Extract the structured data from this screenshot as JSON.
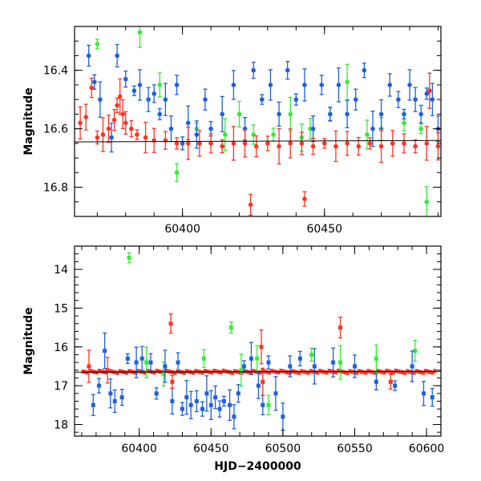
{
  "chart_data": [
    {
      "type": "scatter",
      "title": "",
      "xlabel": "",
      "ylabel": "Magnitude",
      "xlim": [
        60362,
        60491
      ],
      "ylim": [
        16.9,
        16.25
      ],
      "y_inverted": true,
      "grid": false,
      "x_ticks": [
        60400,
        60450
      ],
      "y_ticks": [
        16.4,
        16.6,
        16.8
      ],
      "colors": {
        "green": "#33ee33",
        "blue": "#1f5fe0",
        "red": "#ff3322",
        "line": "#000000"
      },
      "series": [
        {
          "color": "green",
          "points": [
            {
              "x": 60370,
              "y": 16.31
            },
            {
              "x": 60385,
              "y": 16.27
            },
            {
              "x": 60392,
              "y": 16.45
            },
            {
              "x": 60398,
              "y": 16.75
            },
            {
              "x": 60405,
              "y": 16.6
            },
            {
              "x": 60415,
              "y": 16.62
            },
            {
              "x": 60420,
              "y": 16.55
            },
            {
              "x": 60425,
              "y": 16.62
            },
            {
              "x": 60432,
              "y": 16.62
            },
            {
              "x": 60438,
              "y": 16.55
            },
            {
              "x": 60442,
              "y": 16.63
            },
            {
              "x": 60445,
              "y": 16.6
            },
            {
              "x": 60452,
              "y": 16.55
            },
            {
              "x": 60458,
              "y": 16.44
            },
            {
              "x": 60465,
              "y": 16.62
            },
            {
              "x": 60470,
              "y": 16.6
            },
            {
              "x": 60478,
              "y": 16.58
            },
            {
              "x": 60484,
              "y": 16.6
            },
            {
              "x": 60486,
              "y": 16.85
            }
          ]
        },
        {
          "color": "blue",
          "points": [
            {
              "x": 60367,
              "y": 16.35
            },
            {
              "x": 60369,
              "y": 16.44
            },
            {
              "x": 60371,
              "y": 16.5
            },
            {
              "x": 60375,
              "y": 16.63
            },
            {
              "x": 60377,
              "y": 16.35
            },
            {
              "x": 60380,
              "y": 16.43
            },
            {
              "x": 60383,
              "y": 16.47
            },
            {
              "x": 60385,
              "y": 16.45
            },
            {
              "x": 60388,
              "y": 16.5
            },
            {
              "x": 60390,
              "y": 16.48
            },
            {
              "x": 60392,
              "y": 16.55
            },
            {
              "x": 60394,
              "y": 16.5
            },
            {
              "x": 60396,
              "y": 16.6
            },
            {
              "x": 60398,
              "y": 16.45
            },
            {
              "x": 60400,
              "y": 16.65
            },
            {
              "x": 60402,
              "y": 16.58
            },
            {
              "x": 60405,
              "y": 16.62
            },
            {
              "x": 60408,
              "y": 16.5
            },
            {
              "x": 60410,
              "y": 16.6
            },
            {
              "x": 60414,
              "y": 16.55
            },
            {
              "x": 60418,
              "y": 16.45
            },
            {
              "x": 60422,
              "y": 16.6
            },
            {
              "x": 60425,
              "y": 16.4
            },
            {
              "x": 60428,
              "y": 16.5
            },
            {
              "x": 60431,
              "y": 16.45
            },
            {
              "x": 60434,
              "y": 16.55
            },
            {
              "x": 60437,
              "y": 16.4
            },
            {
              "x": 60440,
              "y": 16.5
            },
            {
              "x": 60443,
              "y": 16.45
            },
            {
              "x": 60446,
              "y": 16.6
            },
            {
              "x": 60449,
              "y": 16.45
            },
            {
              "x": 60452,
              "y": 16.55
            },
            {
              "x": 60455,
              "y": 16.45
            },
            {
              "x": 60458,
              "y": 16.55
            },
            {
              "x": 60461,
              "y": 16.5
            },
            {
              "x": 60464,
              "y": 16.4
            },
            {
              "x": 60467,
              "y": 16.6
            },
            {
              "x": 60470,
              "y": 16.55
            },
            {
              "x": 60473,
              "y": 16.45
            },
            {
              "x": 60476,
              "y": 16.5
            },
            {
              "x": 60478,
              "y": 16.55
            },
            {
              "x": 60480,
              "y": 16.45
            },
            {
              "x": 60482,
              "y": 16.5
            },
            {
              "x": 60484,
              "y": 16.55
            },
            {
              "x": 60486,
              "y": 16.48
            },
            {
              "x": 60488,
              "y": 16.5
            },
            {
              "x": 60490,
              "y": 16.6
            }
          ]
        },
        {
          "color": "red",
          "points": [
            {
              "x": 60364,
              "y": 16.58
            },
            {
              "x": 60366,
              "y": 16.56
            },
            {
              "x": 60368,
              "y": 16.46
            },
            {
              "x": 60370,
              "y": 16.63
            },
            {
              "x": 60372,
              "y": 16.62
            },
            {
              "x": 60374,
              "y": 16.6
            },
            {
              "x": 60376,
              "y": 16.57
            },
            {
              "x": 60377,
              "y": 16.52
            },
            {
              "x": 60378,
              "y": 16.49
            },
            {
              "x": 60379,
              "y": 16.55
            },
            {
              "x": 60380,
              "y": 16.58
            },
            {
              "x": 60382,
              "y": 16.6
            },
            {
              "x": 60384,
              "y": 16.62
            },
            {
              "x": 60387,
              "y": 16.63
            },
            {
              "x": 60390,
              "y": 16.64
            },
            {
              "x": 60394,
              "y": 16.64
            },
            {
              "x": 60398,
              "y": 16.65
            },
            {
              "x": 60402,
              "y": 16.65
            },
            {
              "x": 60406,
              "y": 16.65
            },
            {
              "x": 60410,
              "y": 16.65
            },
            {
              "x": 60414,
              "y": 16.66
            },
            {
              "x": 60418,
              "y": 16.65
            },
            {
              "x": 60422,
              "y": 16.65
            },
            {
              "x": 60426,
              "y": 16.66
            },
            {
              "x": 60430,
              "y": 16.65
            },
            {
              "x": 60434,
              "y": 16.66
            },
            {
              "x": 60438,
              "y": 16.65
            },
            {
              "x": 60442,
              "y": 16.65
            },
            {
              "x": 60446,
              "y": 16.66
            },
            {
              "x": 60450,
              "y": 16.65
            },
            {
              "x": 60454,
              "y": 16.66
            },
            {
              "x": 60458,
              "y": 16.65
            },
            {
              "x": 60462,
              "y": 16.66
            },
            {
              "x": 60466,
              "y": 16.65
            },
            {
              "x": 60470,
              "y": 16.66
            },
            {
              "x": 60474,
              "y": 16.65
            },
            {
              "x": 60478,
              "y": 16.65
            },
            {
              "x": 60482,
              "y": 16.66
            },
            {
              "x": 60486,
              "y": 16.65
            },
            {
              "x": 60490,
              "y": 16.66
            },
            {
              "x": 60424,
              "y": 16.86
            },
            {
              "x": 60443,
              "y": 16.84
            },
            {
              "x": 60487,
              "y": 16.47
            }
          ]
        }
      ],
      "line": [
        {
          "x": 60362,
          "y": 16.645
        },
        {
          "x": 60491,
          "y": 16.64
        }
      ]
    },
    {
      "type": "scatter",
      "title": "",
      "xlabel": "HJD−2400000",
      "ylabel": "Magnitude",
      "xlim": [
        60355,
        60610
      ],
      "ylim": [
        18.3,
        13.4
      ],
      "y_inverted": true,
      "grid": false,
      "x_ticks": [
        60400,
        60450,
        60500,
        60550,
        60600
      ],
      "y_ticks": [
        14,
        15,
        16,
        17,
        18
      ],
      "colors": {
        "green": "#33ee33",
        "blue": "#1f5fe0",
        "red": "#ff3322",
        "line": "#000000"
      },
      "series": [
        {
          "color": "green",
          "points": [
            {
              "x": 60393,
              "y": 13.7
            },
            {
              "x": 60405,
              "y": 16.4
            },
            {
              "x": 60417,
              "y": 16.7
            },
            {
              "x": 60445,
              "y": 16.3
            },
            {
              "x": 60464,
              "y": 15.5
            },
            {
              "x": 60471,
              "y": 16.6
            },
            {
              "x": 60482,
              "y": 16.3
            },
            {
              "x": 60490,
              "y": 17.5
            },
            {
              "x": 60520,
              "y": 16.2
            },
            {
              "x": 60540,
              "y": 16.4
            },
            {
              "x": 60565,
              "y": 16.3
            },
            {
              "x": 60592,
              "y": 16.1
            }
          ]
        },
        {
          "color": "blue",
          "points": [
            {
              "x": 60368,
              "y": 17.5
            },
            {
              "x": 60372,
              "y": 17.0
            },
            {
              "x": 60376,
              "y": 16.1
            },
            {
              "x": 60380,
              "y": 17.2
            },
            {
              "x": 60383,
              "y": 17.4
            },
            {
              "x": 60388,
              "y": 17.3
            },
            {
              "x": 60392,
              "y": 16.3
            },
            {
              "x": 60398,
              "y": 16.4
            },
            {
              "x": 60402,
              "y": 16.3
            },
            {
              "x": 60408,
              "y": 16.4
            },
            {
              "x": 60412,
              "y": 17.2
            },
            {
              "x": 60418,
              "y": 16.5
            },
            {
              "x": 60423,
              "y": 17.4
            },
            {
              "x": 60427,
              "y": 16.4
            },
            {
              "x": 60430,
              "y": 17.6
            },
            {
              "x": 60433,
              "y": 17.3
            },
            {
              "x": 60436,
              "y": 17.5
            },
            {
              "x": 60440,
              "y": 17.4
            },
            {
              "x": 60444,
              "y": 17.6
            },
            {
              "x": 60447,
              "y": 17.2
            },
            {
              "x": 60450,
              "y": 17.5
            },
            {
              "x": 60453,
              "y": 17.3
            },
            {
              "x": 60456,
              "y": 17.6
            },
            {
              "x": 60459,
              "y": 17.4
            },
            {
              "x": 60463,
              "y": 17.5
            },
            {
              "x": 60466,
              "y": 17.8
            },
            {
              "x": 60469,
              "y": 17.2
            },
            {
              "x": 60473,
              "y": 16.5
            },
            {
              "x": 60478,
              "y": 16.3
            },
            {
              "x": 60483,
              "y": 17.0
            },
            {
              "x": 60486,
              "y": 17.5
            },
            {
              "x": 60490,
              "y": 16.4
            },
            {
              "x": 60495,
              "y": 17.2
            },
            {
              "x": 60500,
              "y": 17.8
            },
            {
              "x": 60505,
              "y": 16.5
            },
            {
              "x": 60512,
              "y": 16.3
            },
            {
              "x": 60522,
              "y": 16.5
            },
            {
              "x": 60535,
              "y": 16.4
            },
            {
              "x": 60550,
              "y": 16.5
            },
            {
              "x": 60565,
              "y": 16.9
            },
            {
              "x": 60578,
              "y": 17.0
            },
            {
              "x": 60590,
              "y": 16.5
            },
            {
              "x": 60598,
              "y": 17.2
            },
            {
              "x": 60604,
              "y": 17.3
            }
          ]
        },
        {
          "color": "red",
          "points": [
            {
              "x": 60365,
              "y": 16.5
            },
            {
              "x": 60378,
              "y": 16.6
            },
            {
              "x": 60422,
              "y": 15.4
            },
            {
              "x": 60423,
              "y": 16.9
            },
            {
              "x": 60485,
              "y": 16.0
            },
            {
              "x": 60486,
              "y": 16.9
            },
            {
              "x": 60540,
              "y": 15.5
            },
            {
              "x": 60575,
              "y": 16.9
            }
          ]
        }
      ],
      "band": {
        "color": "red",
        "y": 16.62
      },
      "line": [
        {
          "x": 60355,
          "y": 16.65
        },
        {
          "x": 60610,
          "y": 16.63
        }
      ]
    }
  ]
}
